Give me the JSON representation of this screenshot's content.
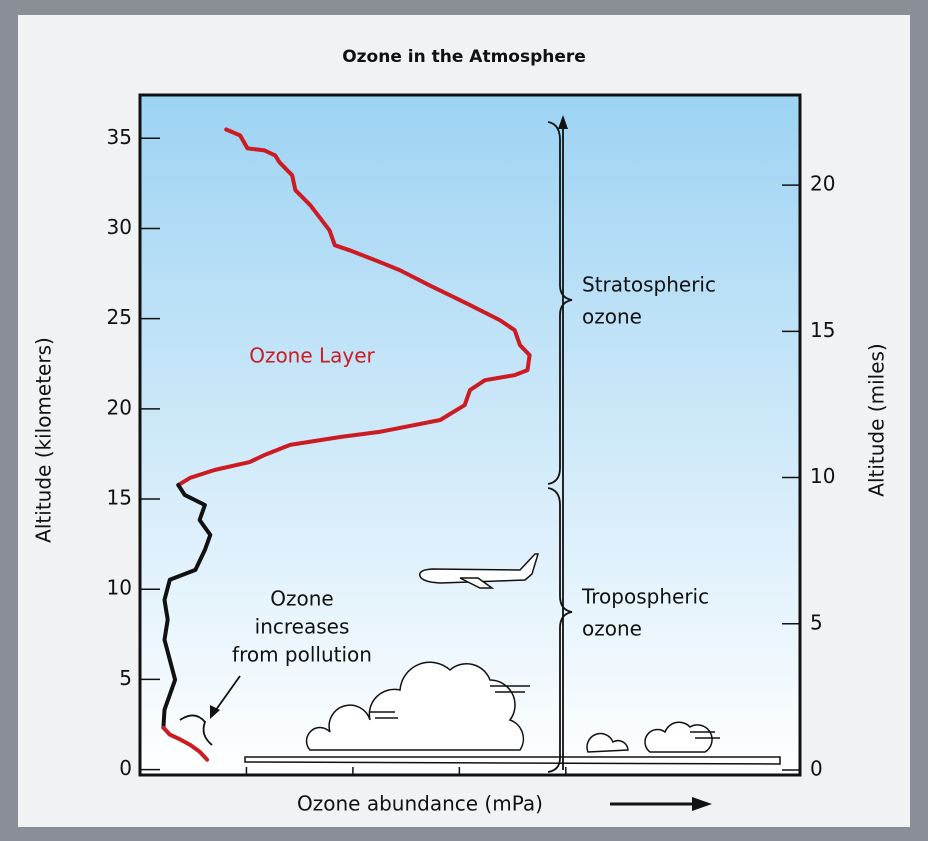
{
  "chart_data": {
    "type": "line",
    "title": "Ozone in the Atmosphere",
    "x_label": "Ozone abundance (mPa)",
    "y_label": "Altitude (kilometers)",
    "y2_label": "Altitude (miles)",
    "xlim": [
      0,
      6.2
    ],
    "xticks": [
      1,
      2,
      3,
      4
    ],
    "ylim": [
      -0.3,
      37.4
    ],
    "yticks": [
      0,
      5,
      10,
      15,
      20,
      25,
      30,
      35
    ],
    "y2lim": [
      -0.17,
      23.08
    ],
    "y2ticks": [
      0,
      5,
      10,
      15,
      20
    ],
    "series": [
      {
        "color": "#cc1b22",
        "x": [
          0.81,
          0.94,
          1.01,
          1.17,
          1.27,
          1.31,
          1.43,
          1.46,
          1.6,
          1.78,
          1.83,
          1.97,
          2.21,
          2.44,
          2.72,
          2.91,
          3.1,
          3.38,
          3.52,
          3.57,
          3.66,
          3.64,
          3.52,
          3.24,
          3.1,
          3.05,
          2.82,
          2.25,
          1.88,
          1.41,
          1.17,
          1.03,
          0.7,
          0.47,
          0.36
        ],
        "y": [
          35.49,
          35.16,
          34.44,
          34.33,
          34.05,
          33.67,
          32.95,
          32.12,
          31.29,
          29.9,
          29.07,
          28.79,
          28.24,
          27.69,
          26.85,
          26.3,
          25.75,
          24.92,
          24.36,
          23.53,
          22.98,
          22.15,
          21.87,
          21.59,
          21.04,
          20.21,
          19.38,
          18.72,
          18.44,
          18.0,
          17.44,
          17.05,
          16.61,
          16.17,
          15.78
        ]
      },
      {
        "color": "#111111",
        "x": [
          0.36,
          0.42,
          0.61,
          0.56,
          0.66,
          0.61,
          0.52,
          0.28,
          0.23,
          0.26,
          0.23,
          0.28,
          0.33,
          0.23,
          0.22
        ],
        "y": [
          15.78,
          15.23,
          14.67,
          13.84,
          13.01,
          12.18,
          11.07,
          10.52,
          9.41,
          8.31,
          7.2,
          6.09,
          4.98,
          3.32,
          2.33
        ]
      },
      {
        "color": "#cc1b22",
        "x": [
          0.22,
          0.28,
          0.38,
          0.47,
          0.56,
          0.63
        ],
        "y": [
          2.33,
          1.94,
          1.66,
          1.38,
          1.0,
          0.55
        ]
      }
    ],
    "annotations": {
      "layer": "Ozone Layer",
      "pollution": [
        "Ozone",
        "increases",
        "from pollution"
      ],
      "stratospheric": [
        "Stratospheric",
        "ozone"
      ],
      "tropospheric": [
        "Tropospheric",
        "ozone"
      ]
    }
  }
}
